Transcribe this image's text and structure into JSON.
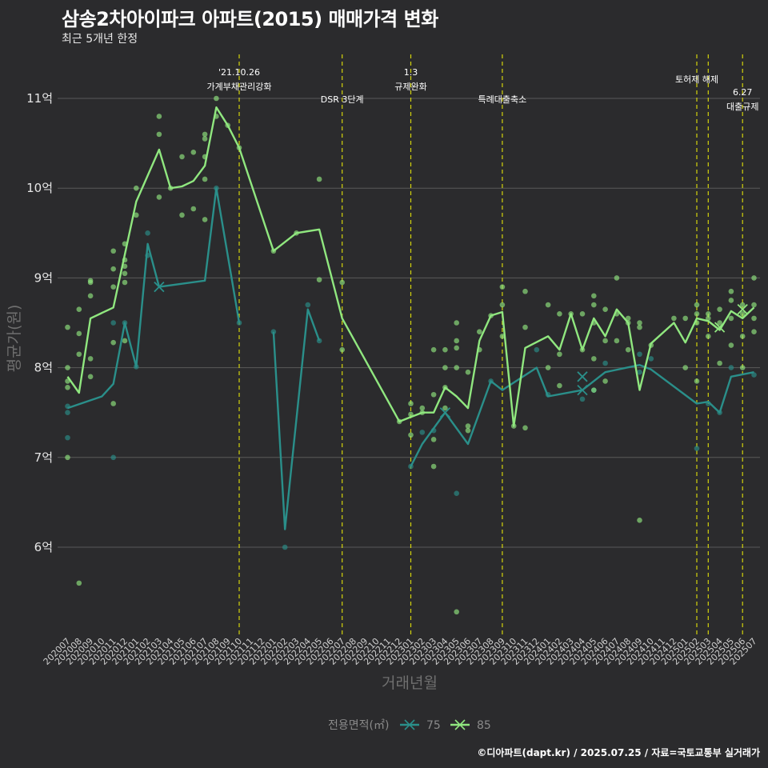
{
  "title": "삼송2차아이파크 아파트(2015) 매매가격 변화",
  "subtitle": "최근 5개년 한정",
  "caption": "©디아파트(dapt.kr) / 2025.07.25 / 자료=국토교통부 실거래가",
  "colors": {
    "background": "#2b2b2d",
    "grid": "#5a5a5a",
    "series_75": "#2a8f8a",
    "series_85": "#90e77f",
    "event_line": "#d4d40c"
  },
  "chart_data": {
    "type": "line",
    "xlabel": "거래년월",
    "ylabel": "평균가(원)",
    "ylim": [
      4.8,
      11.4
    ],
    "yticks": [
      6,
      7,
      8,
      9,
      10,
      11
    ],
    "ytick_labels": [
      "6억",
      "7억",
      "8억",
      "9억",
      "10억",
      "11억"
    ],
    "grid": true,
    "legend_position": "bottom",
    "legend_title": "전용면적(㎡)",
    "categories": [
      "202007",
      "202008",
      "202009",
      "202010",
      "202011",
      "202012",
      "202101",
      "202102",
      "202103",
      "202104",
      "202105",
      "202106",
      "202107",
      "202108",
      "202109",
      "202110",
      "202111",
      "202112",
      "202201",
      "202202",
      "202203",
      "202204",
      "202205",
      "202206",
      "202207",
      "202208",
      "202209",
      "202210",
      "202211",
      "202212",
      "202301",
      "202302",
      "202303",
      "202304",
      "202305",
      "202306",
      "202307",
      "202308",
      "202309",
      "202310",
      "202311",
      "202312",
      "202401",
      "202402",
      "202403",
      "202404",
      "202405",
      "202406",
      "202407",
      "202408",
      "202409",
      "202410",
      "202411",
      "202412",
      "202501",
      "202502",
      "202503",
      "202504",
      "202505",
      "202506",
      "202507"
    ],
    "series": [
      {
        "name": "75",
        "line": [
          [
            0,
            7.55
          ],
          [
            3,
            7.68
          ],
          [
            4,
            7.82
          ],
          [
            5,
            8.5
          ],
          [
            6,
            8.01
          ],
          [
            7,
            9.38
          ],
          [
            8,
            8.9
          ],
          [
            12,
            8.97
          ],
          [
            13,
            10.0
          ],
          [
            15,
            8.5
          ],
          [
            null,
            null
          ],
          [
            18,
            8.4
          ],
          [
            19,
            6.2
          ],
          [
            21,
            8.65
          ],
          [
            22,
            8.3
          ],
          [
            null,
            null
          ],
          [
            30,
            6.9
          ],
          [
            31,
            7.15
          ],
          [
            33,
            7.5
          ],
          [
            35,
            7.15
          ],
          [
            37,
            7.85
          ],
          [
            38,
            7.75
          ],
          [
            41,
            8.0
          ],
          [
            42,
            7.68
          ],
          [
            45,
            7.75
          ],
          [
            47,
            7.95
          ],
          [
            50,
            8.03
          ],
          [
            51,
            7.98
          ],
          [
            55,
            7.6
          ],
          [
            56,
            7.62
          ],
          [
            57,
            7.5
          ],
          [
            58,
            7.9
          ],
          [
            60,
            7.95
          ]
        ],
        "markers": [
          [
            8,
            8.9
          ],
          [
            45,
            7.9
          ],
          [
            45,
            7.75
          ],
          [
            33,
            7.5
          ]
        ],
        "points": [
          [
            0,
            7.57
          ],
          [
            0,
            7.5
          ],
          [
            0,
            7.22
          ],
          [
            4,
            7.0
          ],
          [
            4,
            8.5
          ],
          [
            5,
            8.5
          ],
          [
            6,
            8.01
          ],
          [
            7,
            9.5
          ],
          [
            7,
            9.25
          ],
          [
            13,
            10.0
          ],
          [
            15,
            8.5
          ],
          [
            18,
            8.4
          ],
          [
            19,
            6.0
          ],
          [
            21,
            8.7
          ],
          [
            22,
            8.3
          ],
          [
            30,
            6.9
          ],
          [
            31,
            7.28
          ],
          [
            32,
            7.3
          ],
          [
            34,
            6.6
          ],
          [
            37,
            7.85
          ],
          [
            41,
            8.2
          ],
          [
            42,
            7.7
          ],
          [
            45,
            7.65
          ],
          [
            46,
            7.75
          ],
          [
            47,
            8.05
          ],
          [
            50,
            8.15
          ],
          [
            50,
            7.95
          ],
          [
            51,
            8.1
          ],
          [
            55,
            7.1
          ],
          [
            56,
            7.6
          ],
          [
            57,
            7.5
          ],
          [
            58,
            8.0
          ],
          [
            60,
            7.92
          ]
        ]
      },
      {
        "name": "85",
        "line": [
          [
            0,
            7.9
          ],
          [
            1,
            7.72
          ],
          [
            2,
            8.55
          ],
          [
            4,
            8.67
          ],
          [
            6,
            9.85
          ],
          [
            8,
            10.43
          ],
          [
            9,
            10.0
          ],
          [
            10,
            10.02
          ],
          [
            11,
            10.08
          ],
          [
            12,
            10.25
          ],
          [
            13,
            10.9
          ],
          [
            14,
            10.7
          ],
          [
            15,
            10.45
          ],
          [
            18,
            9.3
          ],
          [
            20,
            9.5
          ],
          [
            22,
            9.54
          ],
          [
            24,
            8.55
          ],
          [
            29,
            7.4
          ],
          [
            30,
            7.45
          ],
          [
            31,
            7.5
          ],
          [
            32,
            7.5
          ],
          [
            33,
            7.78
          ],
          [
            34,
            7.68
          ],
          [
            35,
            7.55
          ],
          [
            36,
            8.3
          ],
          [
            37,
            8.58
          ],
          [
            38,
            8.62
          ],
          [
            39,
            7.35
          ],
          [
            40,
            8.22
          ],
          [
            42,
            8.35
          ],
          [
            43,
            8.2
          ],
          [
            44,
            8.6
          ],
          [
            45,
            8.2
          ],
          [
            46,
            8.55
          ],
          [
            47,
            8.35
          ],
          [
            48,
            8.65
          ],
          [
            49,
            8.5
          ],
          [
            50,
            7.75
          ],
          [
            51,
            8.27
          ],
          [
            53,
            8.5
          ],
          [
            54,
            8.28
          ],
          [
            55,
            8.55
          ],
          [
            56,
            8.52
          ],
          [
            57,
            8.42
          ],
          [
            58,
            8.63
          ],
          [
            59,
            8.55
          ],
          [
            60,
            8.67
          ]
        ],
        "markers": [
          [
            57,
            8.45
          ],
          [
            59,
            8.65
          ]
        ],
        "points": [
          [
            0,
            8.45
          ],
          [
            0,
            8.0
          ],
          [
            0,
            7.85
          ],
          [
            0,
            7.78
          ],
          [
            0,
            7.0
          ],
          [
            1,
            8.65
          ],
          [
            1,
            8.38
          ],
          [
            1,
            8.15
          ],
          [
            1,
            5.6
          ],
          [
            2,
            8.97
          ],
          [
            2,
            8.95
          ],
          [
            2,
            8.8
          ],
          [
            2,
            8.1
          ],
          [
            2,
            7.9
          ],
          [
            4,
            9.3
          ],
          [
            4,
            9.1
          ],
          [
            4,
            8.9
          ],
          [
            4,
            8.28
          ],
          [
            4,
            7.6
          ],
          [
            5,
            9.38
          ],
          [
            5,
            9.2
          ],
          [
            5,
            9.13
          ],
          [
            5,
            9.05
          ],
          [
            5,
            8.95
          ],
          [
            5,
            8.3
          ],
          [
            6,
            10.0
          ],
          [
            6,
            9.7
          ],
          [
            8,
            10.8
          ],
          [
            8,
            10.6
          ],
          [
            8,
            9.9
          ],
          [
            9,
            10.0
          ],
          [
            10,
            10.35
          ],
          [
            10,
            9.7
          ],
          [
            11,
            10.4
          ],
          [
            11,
            9.77
          ],
          [
            12,
            10.6
          ],
          [
            12,
            10.55
          ],
          [
            12,
            10.35
          ],
          [
            12,
            10.1
          ],
          [
            12,
            9.65
          ],
          [
            13,
            11.0
          ],
          [
            13,
            10.8
          ],
          [
            14,
            10.7
          ],
          [
            15,
            10.45
          ],
          [
            18,
            9.3
          ],
          [
            20,
            9.5
          ],
          [
            22,
            10.1
          ],
          [
            22,
            8.98
          ],
          [
            24,
            8.95
          ],
          [
            24,
            8.2
          ],
          [
            29,
            7.4
          ],
          [
            30,
            7.6
          ],
          [
            30,
            7.48
          ],
          [
            30,
            7.25
          ],
          [
            31,
            7.55
          ],
          [
            31,
            7.5
          ],
          [
            32,
            7.7
          ],
          [
            32,
            7.2
          ],
          [
            32,
            6.9
          ],
          [
            32,
            8.2
          ],
          [
            33,
            8.2
          ],
          [
            33,
            8.0
          ],
          [
            33,
            7.78
          ],
          [
            33,
            7.55
          ],
          [
            34,
            8.5
          ],
          [
            34,
            8.3
          ],
          [
            34,
            8.22
          ],
          [
            34,
            8.0
          ],
          [
            34,
            5.28
          ],
          [
            35,
            7.95
          ],
          [
            35,
            7.3
          ],
          [
            35,
            7.35
          ],
          [
            36,
            8.4
          ],
          [
            36,
            8.2
          ],
          [
            37,
            8.58
          ],
          [
            38,
            8.9
          ],
          [
            38,
            8.7
          ],
          [
            38,
            8.35
          ],
          [
            39,
            7.35
          ],
          [
            40,
            8.85
          ],
          [
            40,
            8.45
          ],
          [
            40,
            7.33
          ],
          [
            42,
            8.7
          ],
          [
            42,
            8.0
          ],
          [
            43,
            8.6
          ],
          [
            43,
            8.15
          ],
          [
            43,
            7.8
          ],
          [
            44,
            8.6
          ],
          [
            45,
            8.6
          ],
          [
            45,
            8.2
          ],
          [
            46,
            8.8
          ],
          [
            46,
            8.7
          ],
          [
            46,
            8.5
          ],
          [
            46,
            8.1
          ],
          [
            46,
            7.75
          ],
          [
            47,
            8.65
          ],
          [
            47,
            8.3
          ],
          [
            47,
            7.85
          ],
          [
            48,
            9.0
          ],
          [
            48,
            8.6
          ],
          [
            48,
            8.3
          ],
          [
            49,
            8.55
          ],
          [
            49,
            8.5
          ],
          [
            49,
            8.2
          ],
          [
            50,
            8.5
          ],
          [
            50,
            8.45
          ],
          [
            50,
            6.3
          ],
          [
            51,
            8.25
          ],
          [
            53,
            8.55
          ],
          [
            54,
            8.55
          ],
          [
            54,
            8.0
          ],
          [
            55,
            8.7
          ],
          [
            55,
            8.6
          ],
          [
            55,
            8.5
          ],
          [
            55,
            7.85
          ],
          [
            56,
            8.6
          ],
          [
            56,
            8.55
          ],
          [
            56,
            8.35
          ],
          [
            57,
            8.65
          ],
          [
            57,
            8.5
          ],
          [
            57,
            8.05
          ],
          [
            58,
            8.85
          ],
          [
            58,
            8.75
          ],
          [
            58,
            8.55
          ],
          [
            58,
            8.25
          ],
          [
            59,
            8.7
          ],
          [
            59,
            8.6
          ],
          [
            59,
            8.35
          ],
          [
            59,
            8.0
          ],
          [
            60,
            9.0
          ],
          [
            60,
            8.7
          ],
          [
            60,
            8.55
          ],
          [
            60,
            8.4
          ]
        ]
      }
    ],
    "events": [
      {
        "x": 15,
        "lines": [
          "'21.10.26",
          "가계부채관리강화"
        ]
      },
      {
        "x": 24,
        "lines": [
          "DSR 3단계"
        ]
      },
      {
        "x": 30,
        "lines": [
          "1.3",
          "규제완화"
        ]
      },
      {
        "x": 38,
        "lines": [
          "특례대출축소"
        ]
      },
      {
        "x": 55,
        "lines": [
          "토허제 해제"
        ]
      },
      {
        "x": 56,
        "lines": []
      },
      {
        "x": 59,
        "lines": [
          "6.27",
          "대출규제"
        ]
      }
    ]
  }
}
